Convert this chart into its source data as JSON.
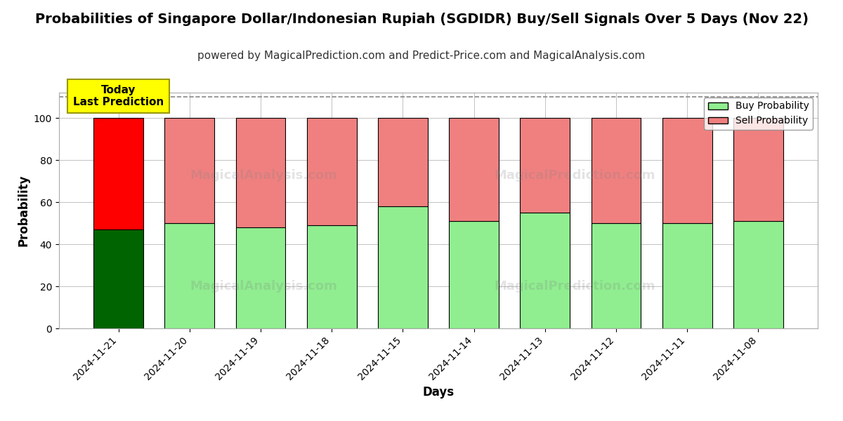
{
  "title": "Probabilities of Singapore Dollar/Indonesian Rupiah (SGDIDR) Buy/Sell Signals Over 5 Days (Nov 22)",
  "subtitle": "powered by MagicalPrediction.com and Predict-Price.com and MagicalAnalysis.com",
  "xlabel": "Days",
  "ylabel": "Probability",
  "categories": [
    "2024-11-21",
    "2024-11-20",
    "2024-11-19",
    "2024-11-18",
    "2024-11-15",
    "2024-11-14",
    "2024-11-13",
    "2024-11-12",
    "2024-11-11",
    "2024-11-08"
  ],
  "buy_values": [
    47,
    50,
    48,
    49,
    58,
    51,
    55,
    50,
    50,
    51
  ],
  "sell_values": [
    53,
    50,
    52,
    51,
    42,
    49,
    45,
    50,
    50,
    49
  ],
  "today_buy_color": "#006400",
  "today_sell_color": "#ff0000",
  "other_buy_color": "#90EE90",
  "other_sell_color": "#F08080",
  "bar_edge_color": "#000000",
  "today_annotation_bg": "#ffff00",
  "today_annotation_text": "Today\nLast Prediction",
  "ylim_max": 112,
  "yticks": [
    0,
    20,
    40,
    60,
    80,
    100
  ],
  "dashed_line_y": 110,
  "watermark_left": "MagicalAnalysis.com",
  "watermark_right": "MagicalPrediction.com",
  "legend_buy_label": "Buy Probability",
  "legend_sell_label": "Sell Probability",
  "title_fontsize": 14,
  "subtitle_fontsize": 11,
  "axis_label_fontsize": 12,
  "tick_fontsize": 10,
  "bg_color": "#ffffff",
  "grid_color": "#aaaaaa",
  "bar_width": 0.7
}
